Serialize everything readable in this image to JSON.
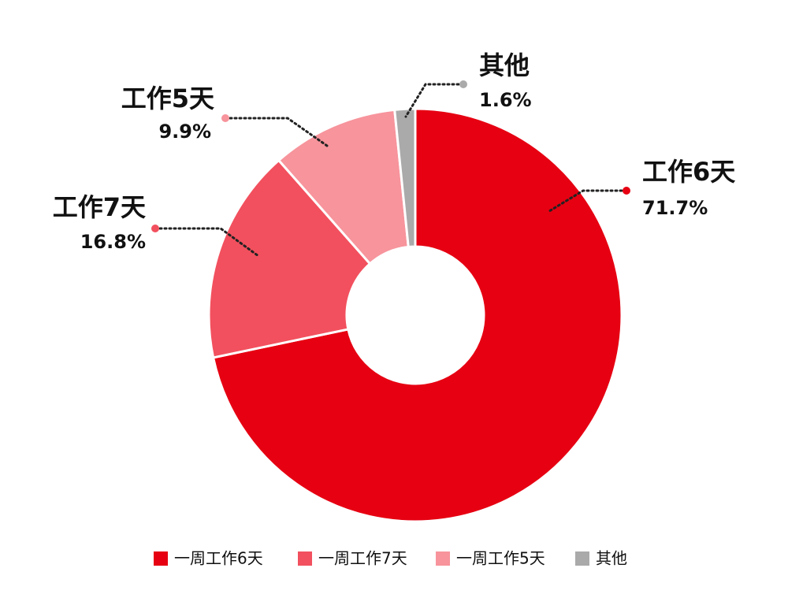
{
  "chart_data": {
    "type": "donut",
    "categories": [
      "工作6天",
      "工作7天",
      "工作5天",
      "其他"
    ],
    "legend": [
      "一周工作6天",
      "一周工作7天",
      "一周工作5天",
      "其他"
    ],
    "values": [
      71.7,
      16.8,
      9.9,
      1.6
    ],
    "value_labels": [
      "71.7%",
      "16.8%",
      "9.9%",
      "1.6%"
    ],
    "colors": [
      "#e60012",
      "#f2505e",
      "#f7949c",
      "#aaaaaa"
    ]
  }
}
